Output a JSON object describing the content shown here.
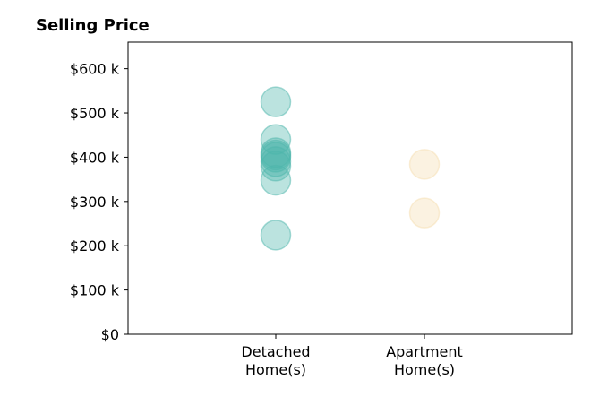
{
  "chart_data": {
    "type": "scatter",
    "title": "Selling Price",
    "xlabel": "",
    "ylabel": "",
    "categories": [
      [
        "Detached",
        "Home(s)"
      ],
      [
        "Apartment",
        "Home(s)"
      ]
    ],
    "ylim": [
      0,
      660000
    ],
    "yticks": [
      0,
      100000,
      200000,
      300000,
      400000,
      500000,
      600000
    ],
    "ytick_labels": [
      "$0",
      "$100 k",
      "$200 k",
      "$300 k",
      "$400 k",
      "$500 k",
      "$600 k"
    ],
    "grid": false,
    "series": [
      {
        "category_index": 0,
        "color": "#4db6ac",
        "values": [
          525000,
          440000,
          410000,
          405000,
          400000,
          390000,
          380000,
          348000,
          224000
        ]
      },
      {
        "category_index": 1,
        "color": "#f5deb0",
        "values": [
          384000,
          274000
        ]
      }
    ]
  }
}
